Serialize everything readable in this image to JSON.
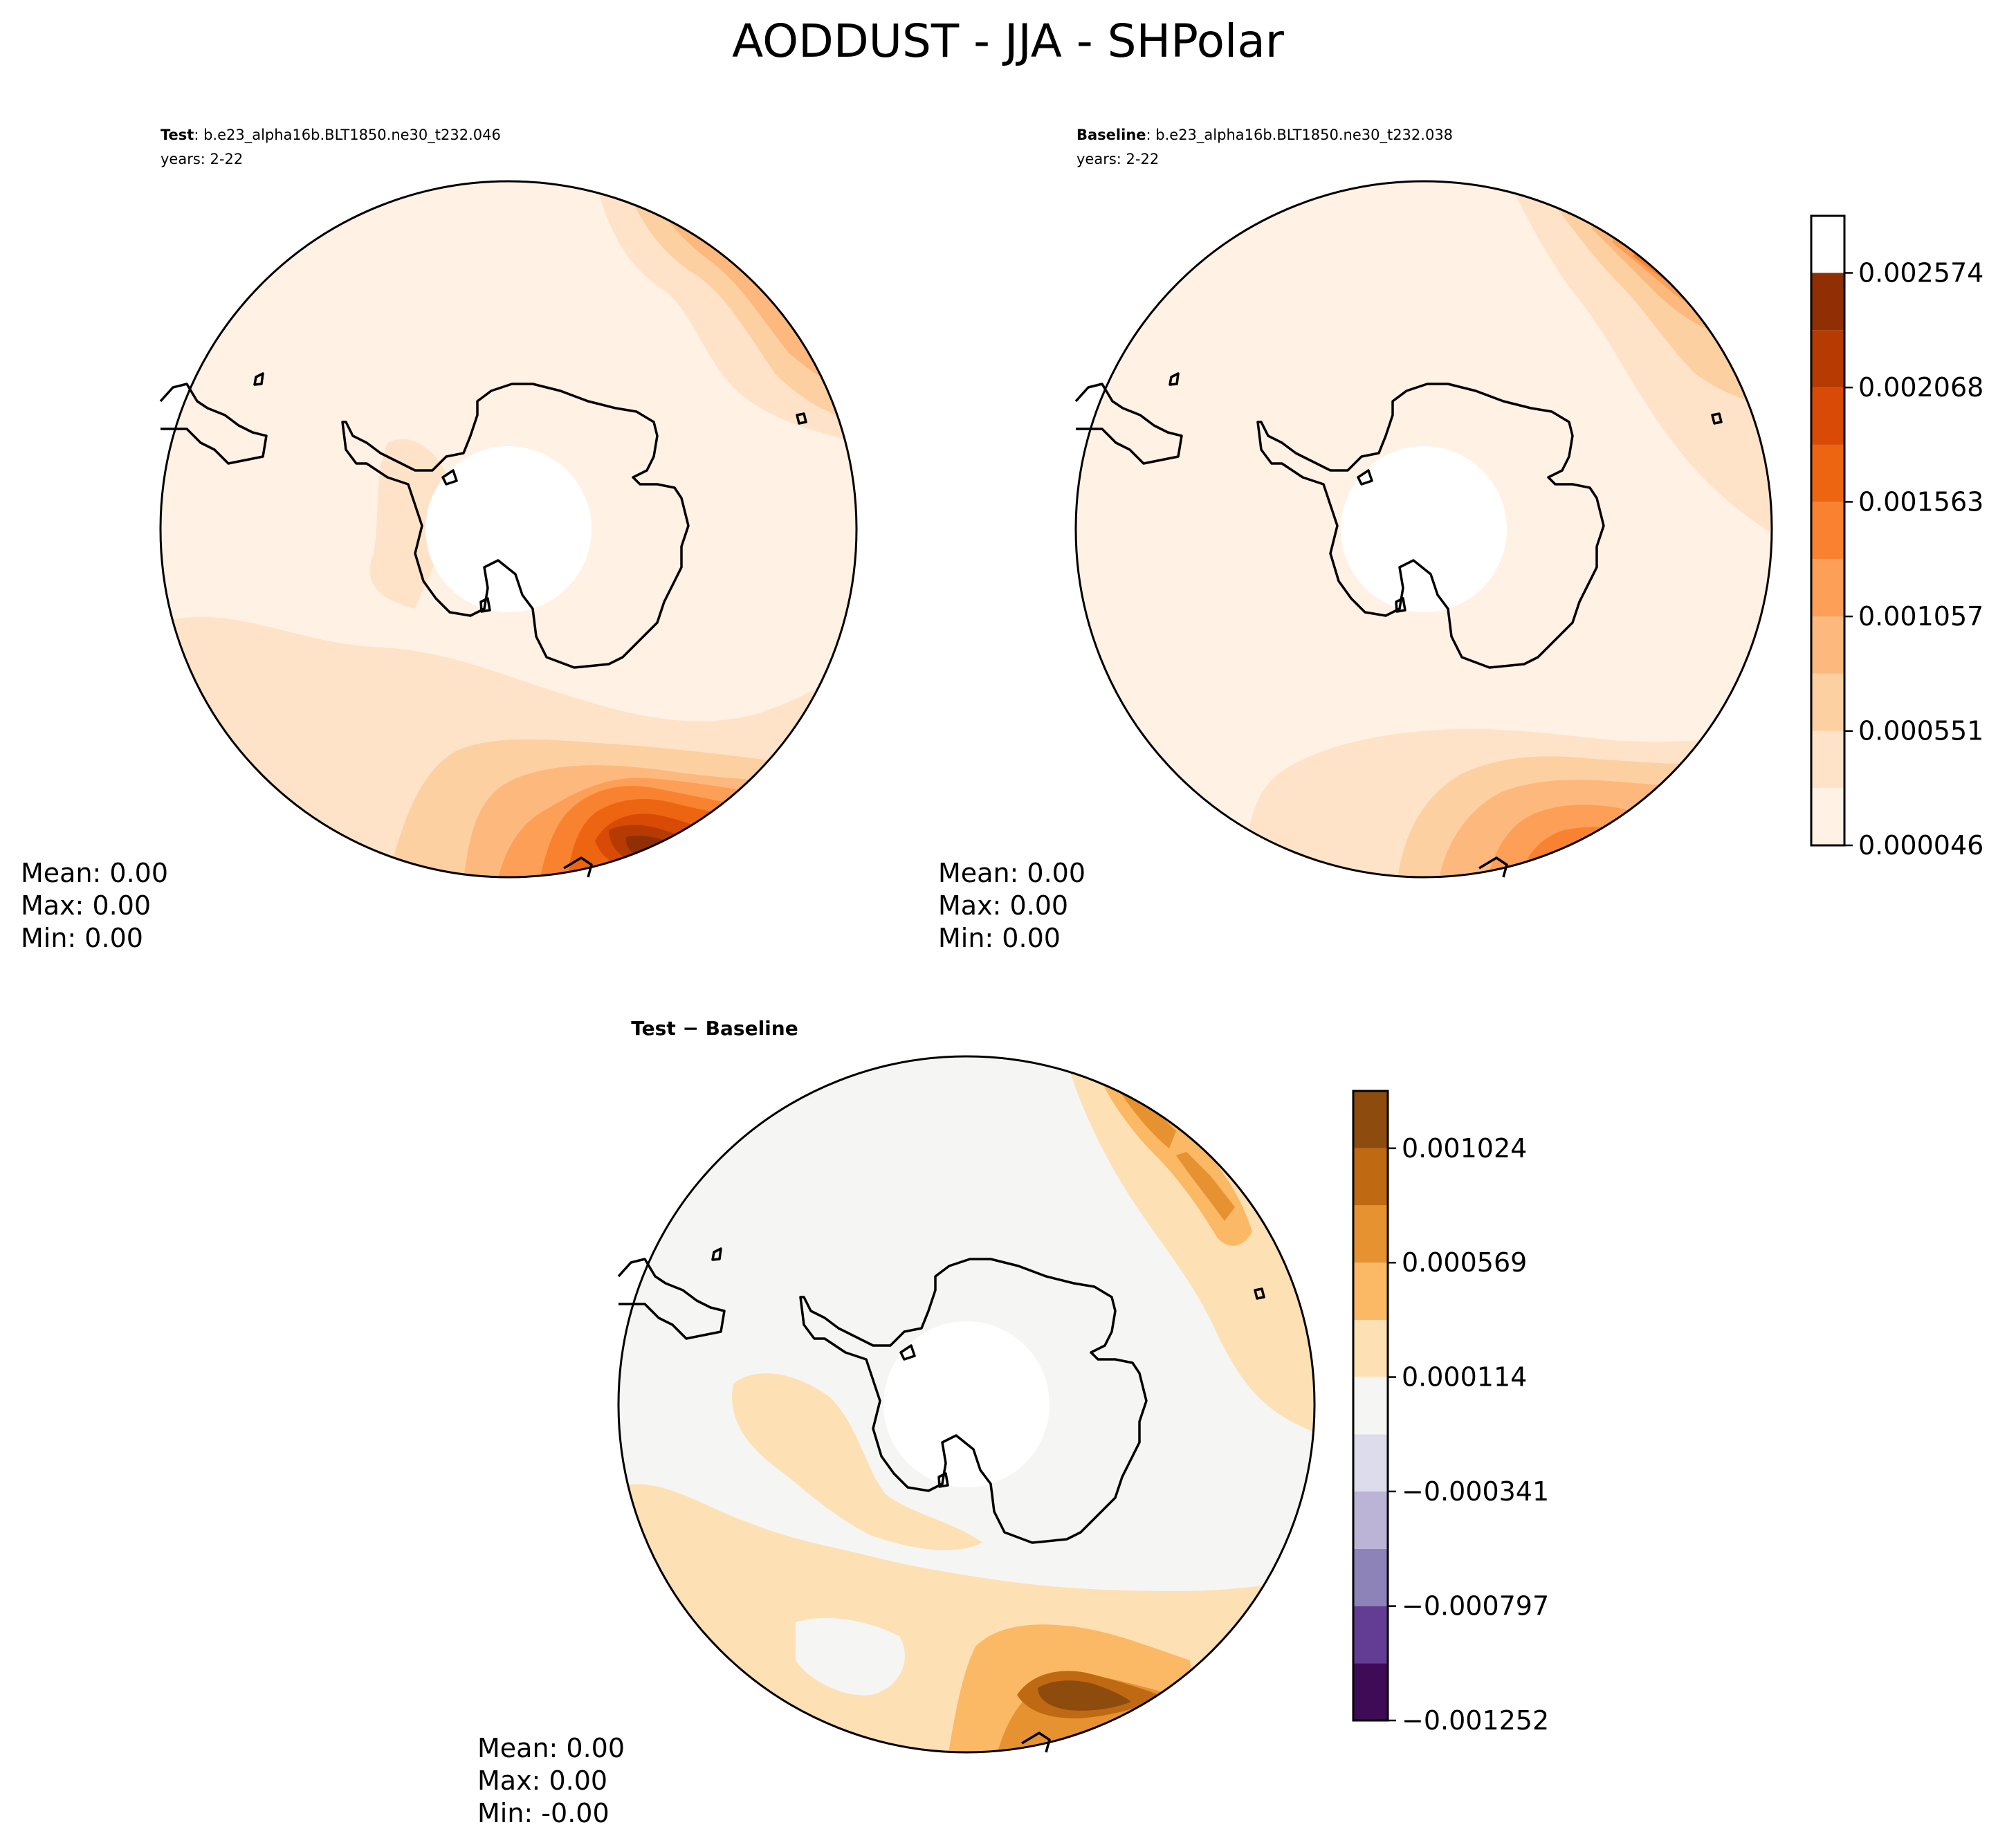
{
  "figure": {
    "title": "AODDUST - JJA - SHPolar"
  },
  "chart_data": [
    {
      "type": "heatmap",
      "panel": "test",
      "projection": "south-polar-stereographic",
      "title_bold": "Test",
      "title_rest": ": b.e23_alpha16b.BLT1850.ne30_t232.046",
      "subtitle": "years: 2-22",
      "stats": {
        "mean": "Mean:  0.00",
        "max": "Max:  0.00",
        "min": "Min:  0.00"
      },
      "colormap": "Oranges",
      "colors": [
        "#fff1e3",
        "#fee3c8",
        "#fdd0a2",
        "#fdb97d",
        "#fd9f56",
        "#f98230",
        "#ee6511",
        "#d84a05",
        "#b53b02",
        "#8f2f03"
      ],
      "colorbar_ticks": [
        "0.000046",
        "0.000551",
        "0.001057",
        "0.001563",
        "0.002068",
        "0.002574"
      ],
      "colorbar_levels": [
        4.6e-05,
        0.000299,
        0.000551,
        0.000804,
        0.001057,
        0.00131,
        0.001563,
        0.001815,
        0.002068,
        0.002321,
        0.002574,
        0.002826
      ],
      "features": [
        {
          "label": "high dust plume near Africa (top-right)",
          "level_max": 9
        },
        {
          "label": "high dust plume south of Australia (bottom)",
          "level_max": 9
        },
        {
          "label": "moderate ring over Southern Ocean",
          "level_max": 2
        }
      ]
    },
    {
      "type": "heatmap",
      "panel": "baseline",
      "projection": "south-polar-stereographic",
      "title_bold": "Baseline",
      "title_rest": ": b.e23_alpha16b.BLT1850.ne30_t232.038",
      "subtitle": "years: 2-22",
      "stats": {
        "mean": "Mean:  0.00",
        "max": "Max:  0.00",
        "min": "Min:  0.00"
      },
      "colormap": "Oranges",
      "shared_colorbar_with": "test",
      "features": [
        {
          "label": "dust plume near Africa (top-right)",
          "level_max": 6
        },
        {
          "label": "dust plume south of Australia (bottom)",
          "level_max": 7
        }
      ]
    },
    {
      "type": "heatmap",
      "panel": "difference",
      "projection": "south-polar-stereographic",
      "title": "Test − Baseline",
      "stats": {
        "mean": "Mean:  0.00",
        "max": "Max:  0.00",
        "min": "Min: -0.00"
      },
      "colormap": "PuOr",
      "colors": [
        "#3f0b57",
        "#633d94",
        "#8d83b8",
        "#bcb4d7",
        "#dcdcec",
        "#f5f5f4",
        "#fee0b5",
        "#fbb966",
        "#e69230",
        "#c06913",
        "#8e4b0e"
      ],
      "colorbar_ticks": [
        "−0.001252",
        "−0.000797",
        "−0.000341",
        "0.000114",
        "0.000569",
        "0.001024"
      ],
      "colorbar_levels": [
        -0.001252,
        -0.001024,
        -0.000797,
        -0.000569,
        -0.000341,
        -0.000114,
        0.000114,
        0.000341,
        0.000569,
        0.000797,
        0.001024,
        0.001252
      ]
    }
  ]
}
